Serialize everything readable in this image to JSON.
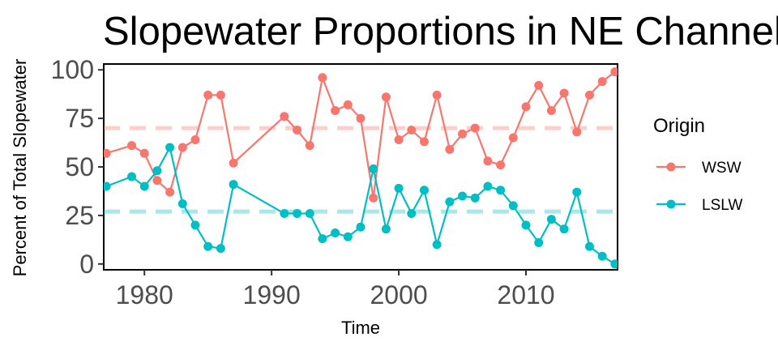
{
  "chart_data": {
    "type": "line",
    "title": "Slopewater Proportions in NE Channel",
    "xlabel": "Time",
    "ylabel": "Percent of Total Slopewater",
    "xlim": [
      1976.8,
      2017.2
    ],
    "ylim": [
      -3,
      103
    ],
    "x_ticks": [
      1980,
      1990,
      2000,
      2010
    ],
    "y_ticks": [
      0,
      25,
      50,
      75,
      100
    ],
    "grid": false,
    "legend": {
      "title": "Origin",
      "position": "right"
    },
    "series": [
      {
        "name": "WSW",
        "color": "#F8766D",
        "reference_mean": 70,
        "points": [
          [
            1977,
            57
          ],
          [
            1979,
            61
          ],
          [
            1980,
            57
          ],
          [
            1981,
            43
          ],
          [
            1982,
            37
          ],
          [
            1983,
            60
          ],
          [
            1984,
            64
          ],
          [
            1985,
            87
          ],
          [
            1986,
            87
          ],
          [
            1987,
            52
          ],
          [
            1991,
            76
          ],
          [
            1992,
            69
          ],
          [
            1993,
            61
          ],
          [
            1994,
            96
          ],
          [
            1995,
            79
          ],
          [
            1996,
            82
          ],
          [
            1997,
            75
          ],
          [
            1998,
            34
          ],
          [
            1999,
            86
          ],
          [
            2000,
            64
          ],
          [
            2001,
            69
          ],
          [
            2002,
            63
          ],
          [
            2003,
            87
          ],
          [
            2004,
            59
          ],
          [
            2005,
            67
          ],
          [
            2006,
            70
          ],
          [
            2007,
            53
          ],
          [
            2008,
            51
          ],
          [
            2009,
            65
          ],
          [
            2010,
            81
          ],
          [
            2011,
            92
          ],
          [
            2012,
            79
          ],
          [
            2013,
            88
          ],
          [
            2014,
            68
          ],
          [
            2015,
            87
          ],
          [
            2016,
            94
          ],
          [
            2017,
            99
          ]
        ]
      },
      {
        "name": "LSLW",
        "color": "#00BFC4",
        "reference_mean": 27,
        "points": [
          [
            1977,
            40
          ],
          [
            1979,
            45
          ],
          [
            1980,
            40
          ],
          [
            1981,
            48
          ],
          [
            1982,
            60
          ],
          [
            1983,
            31
          ],
          [
            1984,
            20
          ],
          [
            1985,
            9
          ],
          [
            1986,
            8
          ],
          [
            1987,
            41
          ],
          [
            1991,
            26
          ],
          [
            1992,
            26
          ],
          [
            1993,
            26
          ],
          [
            1994,
            13
          ],
          [
            1995,
            16
          ],
          [
            1996,
            14
          ],
          [
            1997,
            19
          ],
          [
            1998,
            49
          ],
          [
            1999,
            18
          ],
          [
            2000,
            39
          ],
          [
            2001,
            26
          ],
          [
            2002,
            38
          ],
          [
            2003,
            10
          ],
          [
            2004,
            32
          ],
          [
            2005,
            35
          ],
          [
            2006,
            34
          ],
          [
            2007,
            40
          ],
          [
            2008,
            38
          ],
          [
            2009,
            30
          ],
          [
            2010,
            20
          ],
          [
            2011,
            11
          ],
          [
            2012,
            23
          ],
          [
            2013,
            18
          ],
          [
            2014,
            37
          ],
          [
            2015,
            9
          ],
          [
            2016,
            4
          ],
          [
            2017,
            0
          ]
        ]
      }
    ]
  }
}
